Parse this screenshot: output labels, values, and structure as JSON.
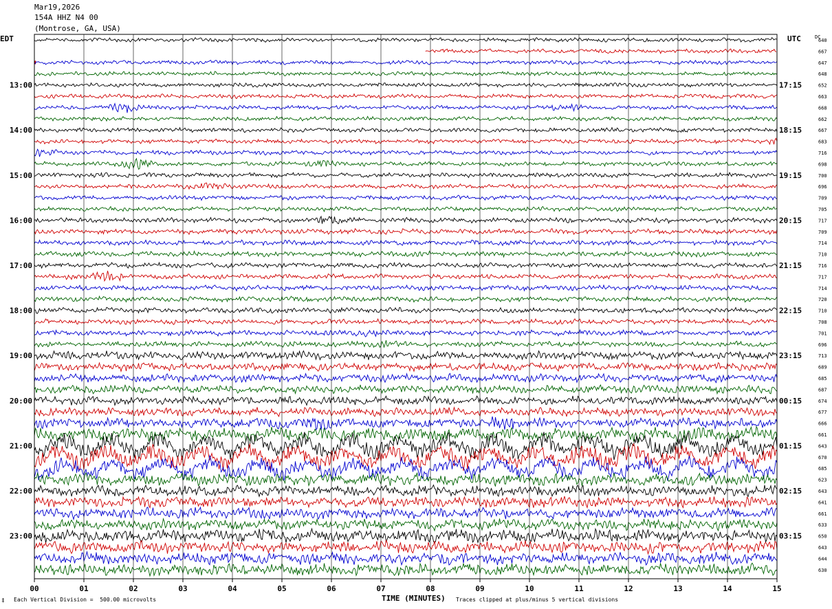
{
  "header": {
    "date": "Mar19,2026",
    "station": "154A HHZ N4 00",
    "location": "(Montrose, GA, USA)"
  },
  "left_zone": "EDT",
  "right_zone": "UTC",
  "dc_header": "DC",
  "footer": {
    "scale_note": "Each Vertical Division =  500.00 microvolts",
    "xlabel": "TIME (MINUTES)",
    "clip_note": "Traces clipped at plus/minus 5 vertical divisions",
    "corner_mark": "‡"
  },
  "colors": {
    "cycle": [
      "#000000",
      "#d00000",
      "#0000d0",
      "#006400"
    ],
    "grid": "#000000"
  },
  "chart_data": {
    "type": "line",
    "title": "",
    "xlabel": "TIME (MINUTES)",
    "ylabel": "",
    "xlim": [
      0,
      15
    ],
    "x_ticks": [
      "00",
      "01",
      "02",
      "03",
      "04",
      "05",
      "06",
      "07",
      "08",
      "09",
      "10",
      "11",
      "12",
      "13",
      "14",
      "15"
    ],
    "trace_count": 48,
    "left_hour_labels": [
      "13:00",
      "14:00",
      "15:00",
      "16:00",
      "17:00",
      "18:00",
      "19:00",
      "20:00",
      "21:00",
      "22:00",
      "23:00"
    ],
    "right_hour_labels": [
      "17:15",
      "18:15",
      "19:15",
      "20:15",
      "21:15",
      "22:15",
      "23:15",
      "00:15",
      "01:15",
      "02:15",
      "03:15"
    ],
    "hour_label_start_trace": 4,
    "dc_values": [
      "640",
      "667",
      "647",
      "648",
      "652",
      "663",
      "668",
      "662",
      "667",
      "683",
      "716",
      "698",
      "700",
      "696",
      "709",
      "705",
      "717",
      "709",
      "714",
      "710",
      "716",
      "717",
      "714",
      "720",
      "710",
      "708",
      "701",
      "696",
      "713",
      "689",
      "685",
      "687",
      "674",
      "677",
      "666",
      "661",
      "643",
      "670",
      "685",
      "623",
      "643",
      "641",
      "661",
      "633",
      "650",
      "643",
      "644",
      "630"
    ],
    "amplitudes": [
      2.2,
      2.2,
      2.2,
      2.2,
      2.3,
      2.3,
      2.3,
      2.3,
      2.4,
      2.4,
      2.4,
      2.4,
      2.5,
      2.5,
      2.5,
      2.5,
      2.8,
      2.8,
      2.8,
      2.8,
      2.8,
      2.8,
      2.8,
      2.8,
      3.0,
      3.0,
      3.0,
      3.0,
      4.5,
      4.5,
      4.5,
      4.5,
      4.5,
      4.5,
      5.5,
      7.5,
      10.0,
      10.0,
      9.0,
      7.0,
      6.0,
      6.0,
      6.0,
      6.0,
      7.0,
      6.5,
      6.5,
      6.5
    ],
    "events": [
      {
        "trace": 1,
        "at_min": 7.9,
        "kind": "trace-start"
      },
      {
        "trace": 6,
        "at_min": 1.8,
        "amp": 7
      },
      {
        "trace": 6,
        "at_min": 10.7,
        "amp": 7
      },
      {
        "trace": 9,
        "at_min": 15.0,
        "amp": 5
      },
      {
        "trace": 10,
        "at_min": 0.2,
        "amp": 6
      },
      {
        "trace": 11,
        "at_min": 2.1,
        "amp": 9
      },
      {
        "trace": 11,
        "at_min": 5.8,
        "amp": 6
      },
      {
        "trace": 12,
        "at_min": 1.2,
        "amp": 4
      },
      {
        "trace": 13,
        "at_min": 3.6,
        "amp": 6
      },
      {
        "trace": 16,
        "at_min": 5.9,
        "amp": 9
      },
      {
        "trace": 21,
        "at_min": 1.5,
        "amp": 8
      },
      {
        "trace": 22,
        "at_min": 0.8,
        "amp": 4
      },
      {
        "trace": 26,
        "at_min": 6.7,
        "amp": 5
      },
      {
        "trace": 27,
        "at_min": 7.1,
        "amp": 5
      },
      {
        "trace": 34,
        "at_min": 5.7,
        "amp": 9
      },
      {
        "trace": 34,
        "at_min": 9.5,
        "amp": 11
      }
    ]
  }
}
